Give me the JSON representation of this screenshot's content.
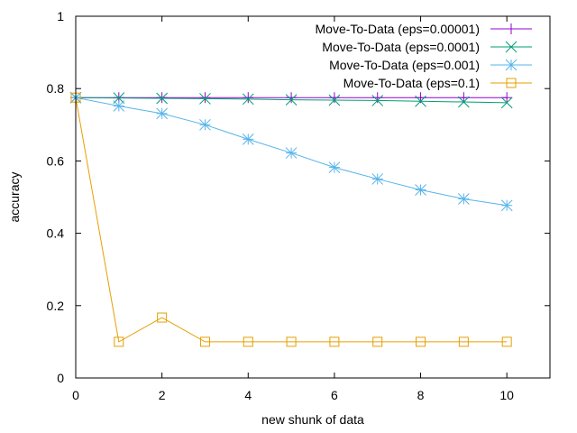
{
  "chart_data": {
    "type": "line",
    "title": "",
    "xlabel": "new shunk of data",
    "ylabel": "accuracy",
    "xlim": [
      0,
      11
    ],
    "ylim": [
      0,
      1
    ],
    "x_ticks": [
      0,
      2,
      4,
      6,
      8,
      10
    ],
    "y_ticks": [
      0,
      0.2,
      0.4,
      0.6,
      0.8,
      1
    ],
    "y_tick_labels": [
      "0",
      "0.2",
      "0.4",
      "0.6",
      "0.8",
      "1"
    ],
    "grid": false,
    "legend_position": "top-right",
    "x": [
      0,
      1,
      2,
      3,
      4,
      5,
      6,
      7,
      8,
      9,
      10
    ],
    "series": [
      {
        "name": "Move-To-Data (eps=0.00001)",
        "color": "#9400d3",
        "marker": "plus",
        "values": [
          0.775,
          0.775,
          0.775,
          0.775,
          0.775,
          0.775,
          0.775,
          0.775,
          0.775,
          0.775,
          0.775
        ]
      },
      {
        "name": "Move-To-Data (eps=0.0001)",
        "color": "#009e73",
        "marker": "cross",
        "values": [
          0.775,
          0.774,
          0.773,
          0.772,
          0.771,
          0.769,
          0.768,
          0.767,
          0.765,
          0.763,
          0.761
        ]
      },
      {
        "name": "Move-To-Data (eps=0.001)",
        "color": "#56b4e9",
        "marker": "star",
        "values": [
          0.775,
          0.752,
          0.731,
          0.7,
          0.66,
          0.622,
          0.582,
          0.55,
          0.52,
          0.495,
          0.477
        ]
      },
      {
        "name": "Move-To-Data (eps=0.1)",
        "color": "#e69f00",
        "marker": "square",
        "values": [
          0.775,
          0.1,
          0.167,
          0.1,
          0.1,
          0.1,
          0.1,
          0.1,
          0.1,
          0.1,
          0.1
        ]
      }
    ]
  }
}
